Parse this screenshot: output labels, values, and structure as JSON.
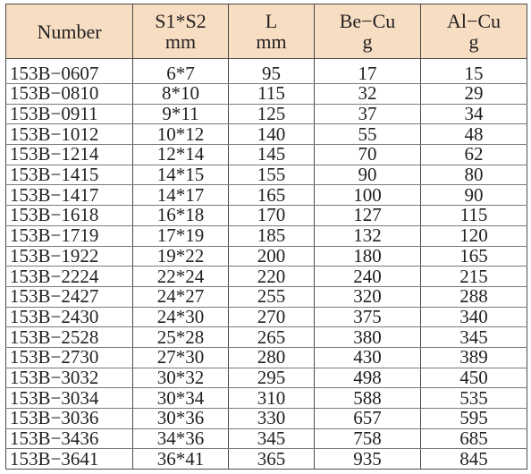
{
  "table": {
    "headers": [
      {
        "line1": "Number",
        "line2": ""
      },
      {
        "line1": "S1*S2",
        "line2": "mm"
      },
      {
        "line1": "L",
        "line2": "mm"
      },
      {
        "line1": "Be−Cu",
        "line2": "g"
      },
      {
        "line1": "Al−Cu",
        "line2": "g"
      }
    ],
    "rows": [
      [
        "153B−0607",
        "6*7",
        "95",
        "17",
        "15"
      ],
      [
        "153B−0810",
        "8*10",
        "115",
        "32",
        "29"
      ],
      [
        "153B−0911",
        "9*11",
        "125",
        "37",
        "34"
      ],
      [
        "153B−1012",
        "10*12",
        "140",
        "55",
        "48"
      ],
      [
        "153B−1214",
        "12*14",
        "145",
        "70",
        "62"
      ],
      [
        "153B−1415",
        "14*15",
        "155",
        "90",
        "80"
      ],
      [
        "153B−1417",
        "14*17",
        "165",
        "100",
        "90"
      ],
      [
        "153B−1618",
        "16*18",
        "170",
        "127",
        "115"
      ],
      [
        "153B−1719",
        "17*19",
        "185",
        "132",
        "120"
      ],
      [
        "153B−1922",
        "19*22",
        "200",
        "180",
        "165"
      ],
      [
        "153B−2224",
        "22*24",
        "220",
        "240",
        "215"
      ],
      [
        "153B−2427",
        "24*27",
        "255",
        "320",
        "288"
      ],
      [
        "153B−2430",
        "24*30",
        "270",
        "375",
        "340"
      ],
      [
        "153B−2528",
        "25*28",
        "265",
        "380",
        "345"
      ],
      [
        "153B−2730",
        "27*30",
        "280",
        "430",
        "389"
      ],
      [
        "153B−3032",
        "30*32",
        "295",
        "498",
        "450"
      ],
      [
        "153B−3034",
        "30*34",
        "310",
        "588",
        "535"
      ],
      [
        "153B−3036",
        "30*36",
        "330",
        "657",
        "595"
      ],
      [
        "153B−3436",
        "34*36",
        "345",
        "758",
        "685"
      ],
      [
        "153B−3641",
        "36*41",
        "365",
        "935",
        "845"
      ]
    ]
  }
}
